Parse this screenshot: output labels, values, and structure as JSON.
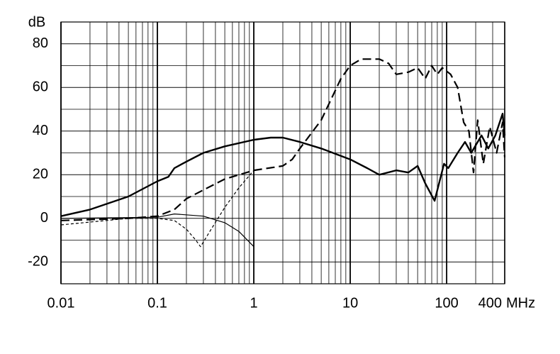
{
  "chart_data": {
    "type": "line",
    "y_label": "dB",
    "x_unit": "MHz",
    "xscale": "log",
    "xlim": [
      0.01,
      400
    ],
    "ylim": [
      -30,
      90
    ],
    "xticks": [
      0.01,
      0.1,
      1,
      10,
      100,
      400
    ],
    "yticks": [
      -20,
      0,
      20,
      40,
      60,
      80
    ],
    "grid": true,
    "series": [
      {
        "color": "#000000",
        "style": "solid-thick",
        "x": [
          0.01,
          0.02,
          0.05,
          0.1,
          0.13,
          0.15,
          0.2,
          0.3,
          0.5,
          1,
          1.5,
          2,
          3,
          5,
          10,
          15,
          20,
          30,
          40,
          50,
          60,
          75,
          94,
          104,
          130,
          155,
          180,
          230,
          270,
          320,
          380,
          400
        ],
        "values": [
          1,
          4,
          10,
          17,
          19,
          23,
          26,
          30,
          33,
          36,
          37,
          37,
          35,
          32,
          27,
          23,
          20,
          22,
          21,
          24,
          16,
          8,
          25,
          23,
          30,
          35,
          30,
          38,
          32,
          38,
          48,
          38
        ]
      },
      {
        "color": "#000000",
        "style": "long-dash",
        "x": [
          0.01,
          0.05,
          0.1,
          0.15,
          0.2,
          0.3,
          0.5,
          1,
          2,
          2.5,
          3,
          5,
          8,
          10,
          13,
          20,
          25,
          30,
          40,
          50,
          60,
          70,
          80,
          90,
          110,
          130,
          150,
          170,
          190,
          210,
          240,
          280,
          330,
          380,
          400
        ],
        "values": [
          -1,
          0,
          1,
          4,
          9,
          13,
          18,
          22,
          24,
          27,
          32,
          45,
          64,
          70,
          73,
          73,
          71,
          66,
          67,
          69,
          64,
          70,
          66,
          69,
          66,
          60,
          44,
          40,
          21,
          45,
          25,
          42,
          30,
          44,
          28
        ]
      },
      {
        "color": "#000000",
        "style": "short-dash",
        "x": [
          0.01,
          0.05,
          0.1,
          0.15,
          0.2,
          0.25,
          0.28,
          0.35,
          0.5,
          0.7,
          1
        ],
        "values": [
          -3,
          0,
          0,
          -1,
          -5,
          -10,
          -13,
          -6,
          5,
          14,
          22
        ]
      },
      {
        "color": "#000000",
        "style": "solid-thin",
        "x": [
          0.01,
          0.1,
          0.15,
          0.3,
          0.5,
          0.7,
          1
        ],
        "values": [
          0,
          0.5,
          2,
          1,
          -2,
          -6,
          -13
        ]
      }
    ]
  }
}
